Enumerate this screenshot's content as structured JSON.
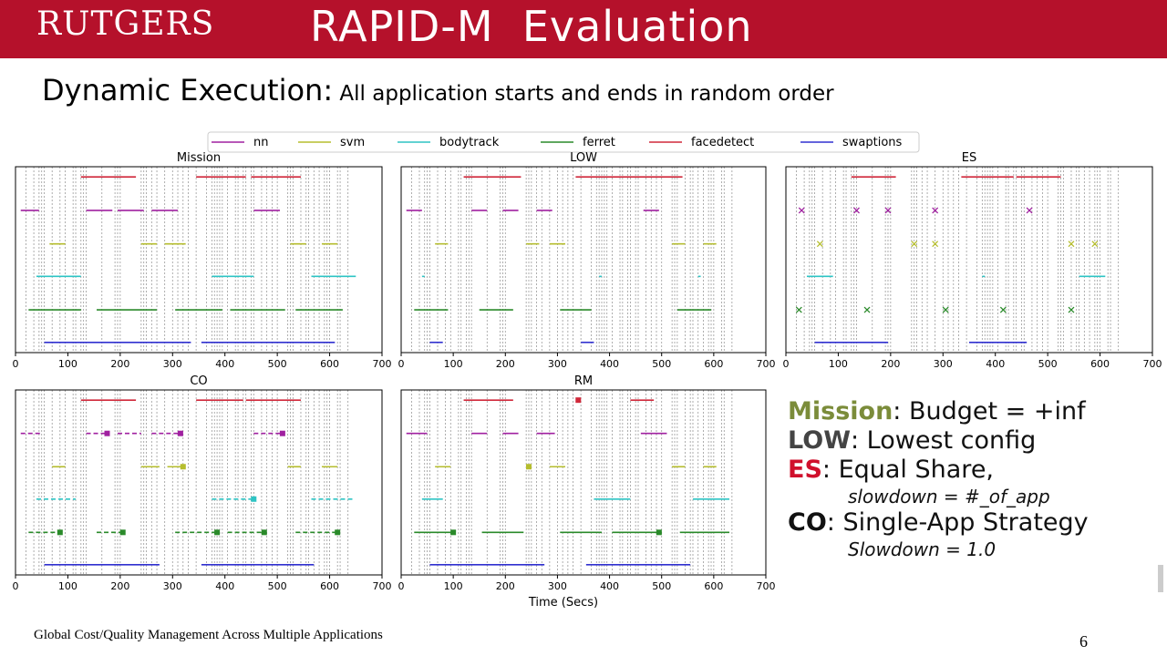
{
  "header": {
    "logo": "RUTGERS",
    "title": "RAPID-M  Evaluation"
  },
  "heading": {
    "main": "Dynamic Execution:",
    "sub": " All application starts and ends in random order"
  },
  "footer": {
    "text": "Global Cost/Quality Management Across Multiple Applications",
    "page": "6"
  },
  "notes": {
    "mission_key": "Mission",
    "mission_text": ": Budget = +inf",
    "low_key": "LOW",
    "low_text": ": Lowest config",
    "es_key": "ES",
    "es_text": ": Equal Share,",
    "es_sub": "slowdown = #_of_app",
    "co_key": "CO",
    "co_text": ": Single-App Strategy",
    "co_sub": "Slowdown = 1.0"
  },
  "chart_data": {
    "type": "line",
    "xlabel": "Time (Secs)",
    "xlim": [
      0,
      700
    ],
    "xticks": [
      0,
      100,
      200,
      300,
      400,
      500,
      600,
      700
    ],
    "legend_position": "top",
    "series": [
      {
        "name": "nn",
        "color": "#a020a0",
        "row": 2
      },
      {
        "name": "svm",
        "color": "#b5bd2e",
        "row": 3
      },
      {
        "name": "bodytrack",
        "color": "#2ec4c4",
        "row": 4
      },
      {
        "name": "ferret",
        "color": "#2a8a2a",
        "row": 5
      },
      {
        "name": "facedetect",
        "color": "#d0283a",
        "row": 1
      },
      {
        "name": "swaptions",
        "color": "#3030d0",
        "row": 6
      }
    ],
    "panels": [
      {
        "title": "Mission",
        "vlines": [
          20,
          35,
          45,
          50,
          55,
          70,
          85,
          95,
          110,
          115,
          125,
          130,
          135,
          165,
          190,
          195,
          200,
          240,
          245,
          250,
          260,
          270,
          285,
          300,
          310,
          320,
          330,
          345,
          365,
          375,
          380,
          385,
          390,
          395,
          405,
          420,
          425,
          435,
          440,
          450,
          455,
          470,
          480,
          490,
          500,
          520,
          525,
          530,
          545,
          555,
          560,
          570,
          580,
          590,
          595,
          600,
          615,
          620,
          635
        ],
        "segments": {
          "facedetect": [
            [
              125,
              230
            ],
            [
              345,
              440
            ],
            [
              450,
              545
            ]
          ],
          "nn": [
            [
              10,
              45
            ],
            [
              135,
              185
            ],
            [
              195,
              245
            ],
            [
              260,
              310
            ],
            [
              455,
              505
            ]
          ],
          "svm": [
            [
              65,
              95
            ],
            [
              240,
              270
            ],
            [
              285,
              325
            ],
            [
              525,
              555
            ],
            [
              585,
              615
            ]
          ],
          "bodytrack": [
            [
              40,
              125
            ],
            [
              375,
              455
            ],
            [
              565,
              650
            ]
          ],
          "ferret": [
            [
              25,
              125
            ],
            [
              155,
              270
            ],
            [
              305,
              395
            ],
            [
              410,
              515
            ],
            [
              535,
              625
            ]
          ],
          "swaptions": [
            [
              55,
              335
            ],
            [
              355,
              610
            ]
          ]
        }
      },
      {
        "title": "LOW",
        "vlines": [
          20,
          35,
          45,
          50,
          55,
          70,
          85,
          95,
          110,
          115,
          125,
          130,
          135,
          165,
          190,
          195,
          200,
          240,
          245,
          250,
          260,
          270,
          285,
          300,
          310,
          320,
          330,
          345,
          365,
          375,
          380,
          385,
          390,
          395,
          405,
          420,
          425,
          435,
          440,
          450,
          455,
          470,
          480,
          490,
          500,
          520,
          525,
          530,
          545,
          555,
          560,
          570,
          580,
          590,
          595,
          600,
          615,
          620,
          635
        ],
        "segments": {
          "facedetect": [
            [
              120,
              230
            ],
            [
              335,
              540
            ]
          ],
          "nn": [
            [
              10,
              40
            ],
            [
              135,
              165
            ],
            [
              195,
              225
            ],
            [
              260,
              290
            ],
            [
              465,
              495
            ]
          ],
          "svm": [
            [
              65,
              90
            ],
            [
              240,
              265
            ],
            [
              285,
              315
            ],
            [
              520,
              545
            ],
            [
              580,
              605
            ]
          ],
          "bodytrack": [
            [
              40,
              45
            ],
            [
              380,
              385
            ],
            [
              570,
              575
            ]
          ],
          "ferret": [
            [
              25,
              90
            ],
            [
              150,
              215
            ],
            [
              305,
              365
            ],
            [
              530,
              595
            ]
          ],
          "swaptions": [
            [
              55,
              80
            ],
            [
              345,
              370
            ]
          ]
        }
      },
      {
        "title": "ES",
        "vlines": [
          20,
          35,
          45,
          50,
          55,
          70,
          85,
          95,
          110,
          115,
          125,
          130,
          135,
          165,
          190,
          195,
          200,
          240,
          245,
          250,
          260,
          270,
          285,
          300,
          310,
          320,
          330,
          345,
          365,
          375,
          380,
          385,
          390,
          395,
          405,
          420,
          425,
          435,
          440,
          450,
          455,
          470,
          480,
          490,
          500,
          520,
          525,
          530,
          545,
          555,
          560,
          570,
          580,
          590,
          595,
          600,
          615,
          620,
          635
        ],
        "segments": {
          "facedetect": [
            [
              125,
              210
            ],
            [
              335,
              435
            ],
            [
              440,
              525
            ]
          ],
          "bodytrack": [
            [
              40,
              90
            ],
            [
              375,
              380
            ],
            [
              560,
              610
            ]
          ],
          "swaptions": [
            [
              55,
              195
            ],
            [
              350,
              460
            ]
          ]
        },
        "markers": {
          "nn": [
            30,
            135,
            195,
            285,
            465
          ],
          "svm": [
            65,
            245,
            285,
            545,
            590
          ],
          "ferret": [
            25,
            155,
            305,
            415,
            545
          ]
        }
      },
      {
        "title": "CO",
        "vlines": [
          20,
          35,
          45,
          50,
          55,
          70,
          85,
          95,
          110,
          115,
          125,
          130,
          135,
          165,
          190,
          195,
          200,
          240,
          245,
          250,
          260,
          270,
          285,
          300,
          310,
          320,
          330,
          345,
          365,
          375,
          380,
          385,
          390,
          395,
          405,
          420,
          425,
          435,
          440,
          450,
          455,
          470,
          480,
          490,
          500,
          520,
          525,
          530,
          545,
          555,
          560,
          570,
          580,
          590,
          595,
          600,
          615,
          620,
          635
        ],
        "segments": {
          "facedetect": [
            [
              125,
              230
            ],
            [
              345,
              435
            ],
            [
              440,
              545
            ]
          ],
          "nn": [
            [
              10,
              50
            ],
            [
              135,
              175
            ],
            [
              195,
              240
            ],
            [
              260,
              310
            ],
            [
              455,
              505
            ]
          ],
          "svm": [
            [
              70,
              95
            ],
            [
              240,
              275
            ],
            [
              290,
              325
            ],
            [
              520,
              545
            ],
            [
              585,
              615
            ]
          ],
          "bodytrack": [
            [
              40,
              115
            ],
            [
              375,
              455
            ],
            [
              565,
              645
            ]
          ],
          "ferret": [
            [
              25,
              85
            ],
            [
              155,
              205
            ],
            [
              305,
              385
            ],
            [
              405,
              475
            ],
            [
              535,
              615
            ]
          ],
          "swaptions": [
            [
              55,
              275
            ],
            [
              355,
              570
            ]
          ]
        },
        "markers": {
          "nn": [
            175,
            315,
            510
          ],
          "svm": [
            320
          ],
          "bodytrack": [
            455
          ],
          "ferret": [
            85,
            205,
            385,
            475,
            615
          ]
        }
      },
      {
        "title": "RM",
        "vlines": [
          20,
          35,
          45,
          50,
          55,
          70,
          85,
          95,
          110,
          115,
          125,
          130,
          135,
          165,
          190,
          195,
          200,
          240,
          245,
          250,
          260,
          270,
          285,
          300,
          310,
          320,
          330,
          345,
          365,
          375,
          380,
          385,
          390,
          395,
          405,
          420,
          425,
          435,
          440,
          450,
          455,
          470,
          480,
          490,
          500,
          520,
          525,
          530,
          545,
          555,
          560,
          570,
          580,
          590,
          595,
          600,
          615,
          620,
          635
        ],
        "segments": {
          "facedetect": [
            [
              120,
              215
            ],
            [
              440,
              485
            ]
          ],
          "nn": [
            [
              10,
              50
            ],
            [
              135,
              165
            ],
            [
              195,
              225
            ],
            [
              260,
              295
            ],
            [
              460,
              510
            ]
          ],
          "svm": [
            [
              65,
              95
            ],
            [
              245,
              250
            ],
            [
              285,
              315
            ],
            [
              520,
              545
            ],
            [
              580,
              605
            ]
          ],
          "bodytrack": [
            [
              40,
              80
            ],
            [
              370,
              440
            ],
            [
              560,
              630
            ]
          ],
          "ferret": [
            [
              25,
              100
            ],
            [
              155,
              235
            ],
            [
              305,
              385
            ],
            [
              405,
              500
            ],
            [
              535,
              630
            ]
          ],
          "swaptions": [
            [
              55,
              275
            ],
            [
              355,
              555
            ]
          ]
        },
        "markers": {
          "facedetect": [
            340
          ],
          "svm": [
            245
          ],
          "ferret": [
            100,
            495
          ]
        }
      }
    ]
  }
}
